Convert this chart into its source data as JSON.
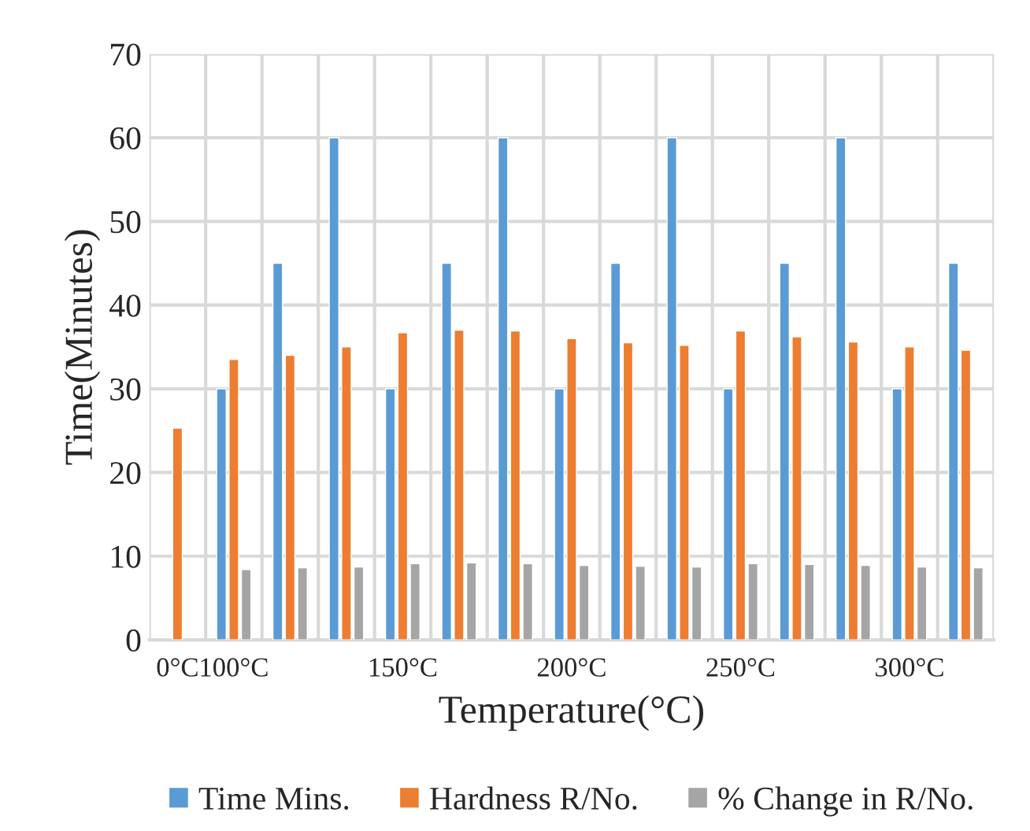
{
  "chart_data": {
    "type": "bar",
    "categories": [
      "0°C",
      "100°C",
      null,
      null,
      "150°C",
      null,
      null,
      "200°C",
      null,
      null,
      "250°C",
      null,
      null,
      "300°C",
      null
    ],
    "series": [
      {
        "name": "Time Mins.",
        "color": "#5b9bd5",
        "values": [
          null,
          30,
          45,
          60,
          30,
          45,
          60,
          30,
          45,
          60,
          30,
          45,
          60,
          30,
          45
        ]
      },
      {
        "name": "Hardness R/No.",
        "color": "#ed7d31",
        "values": [
          25.3,
          33.5,
          34.0,
          35.0,
          36.7,
          37.0,
          36.9,
          36.0,
          35.5,
          35.2,
          36.9,
          36.2,
          35.6,
          35.0,
          34.6
        ]
      },
      {
        "name": "% Change in R/No.",
        "color": "#a5a5a5",
        "values": [
          null,
          8.4,
          8.6,
          8.7,
          9.1,
          9.2,
          9.1,
          8.9,
          8.8,
          8.7,
          9.1,
          9.0,
          8.9,
          8.7,
          8.6
        ]
      }
    ],
    "xlabel": "Temperature(°C)",
    "ylabel": "Time(Minutes)",
    "ylim": [
      0,
      70
    ],
    "yticks": [
      0,
      10,
      20,
      30,
      40,
      50,
      60,
      70
    ],
    "grid": true,
    "legend": "bottom"
  }
}
